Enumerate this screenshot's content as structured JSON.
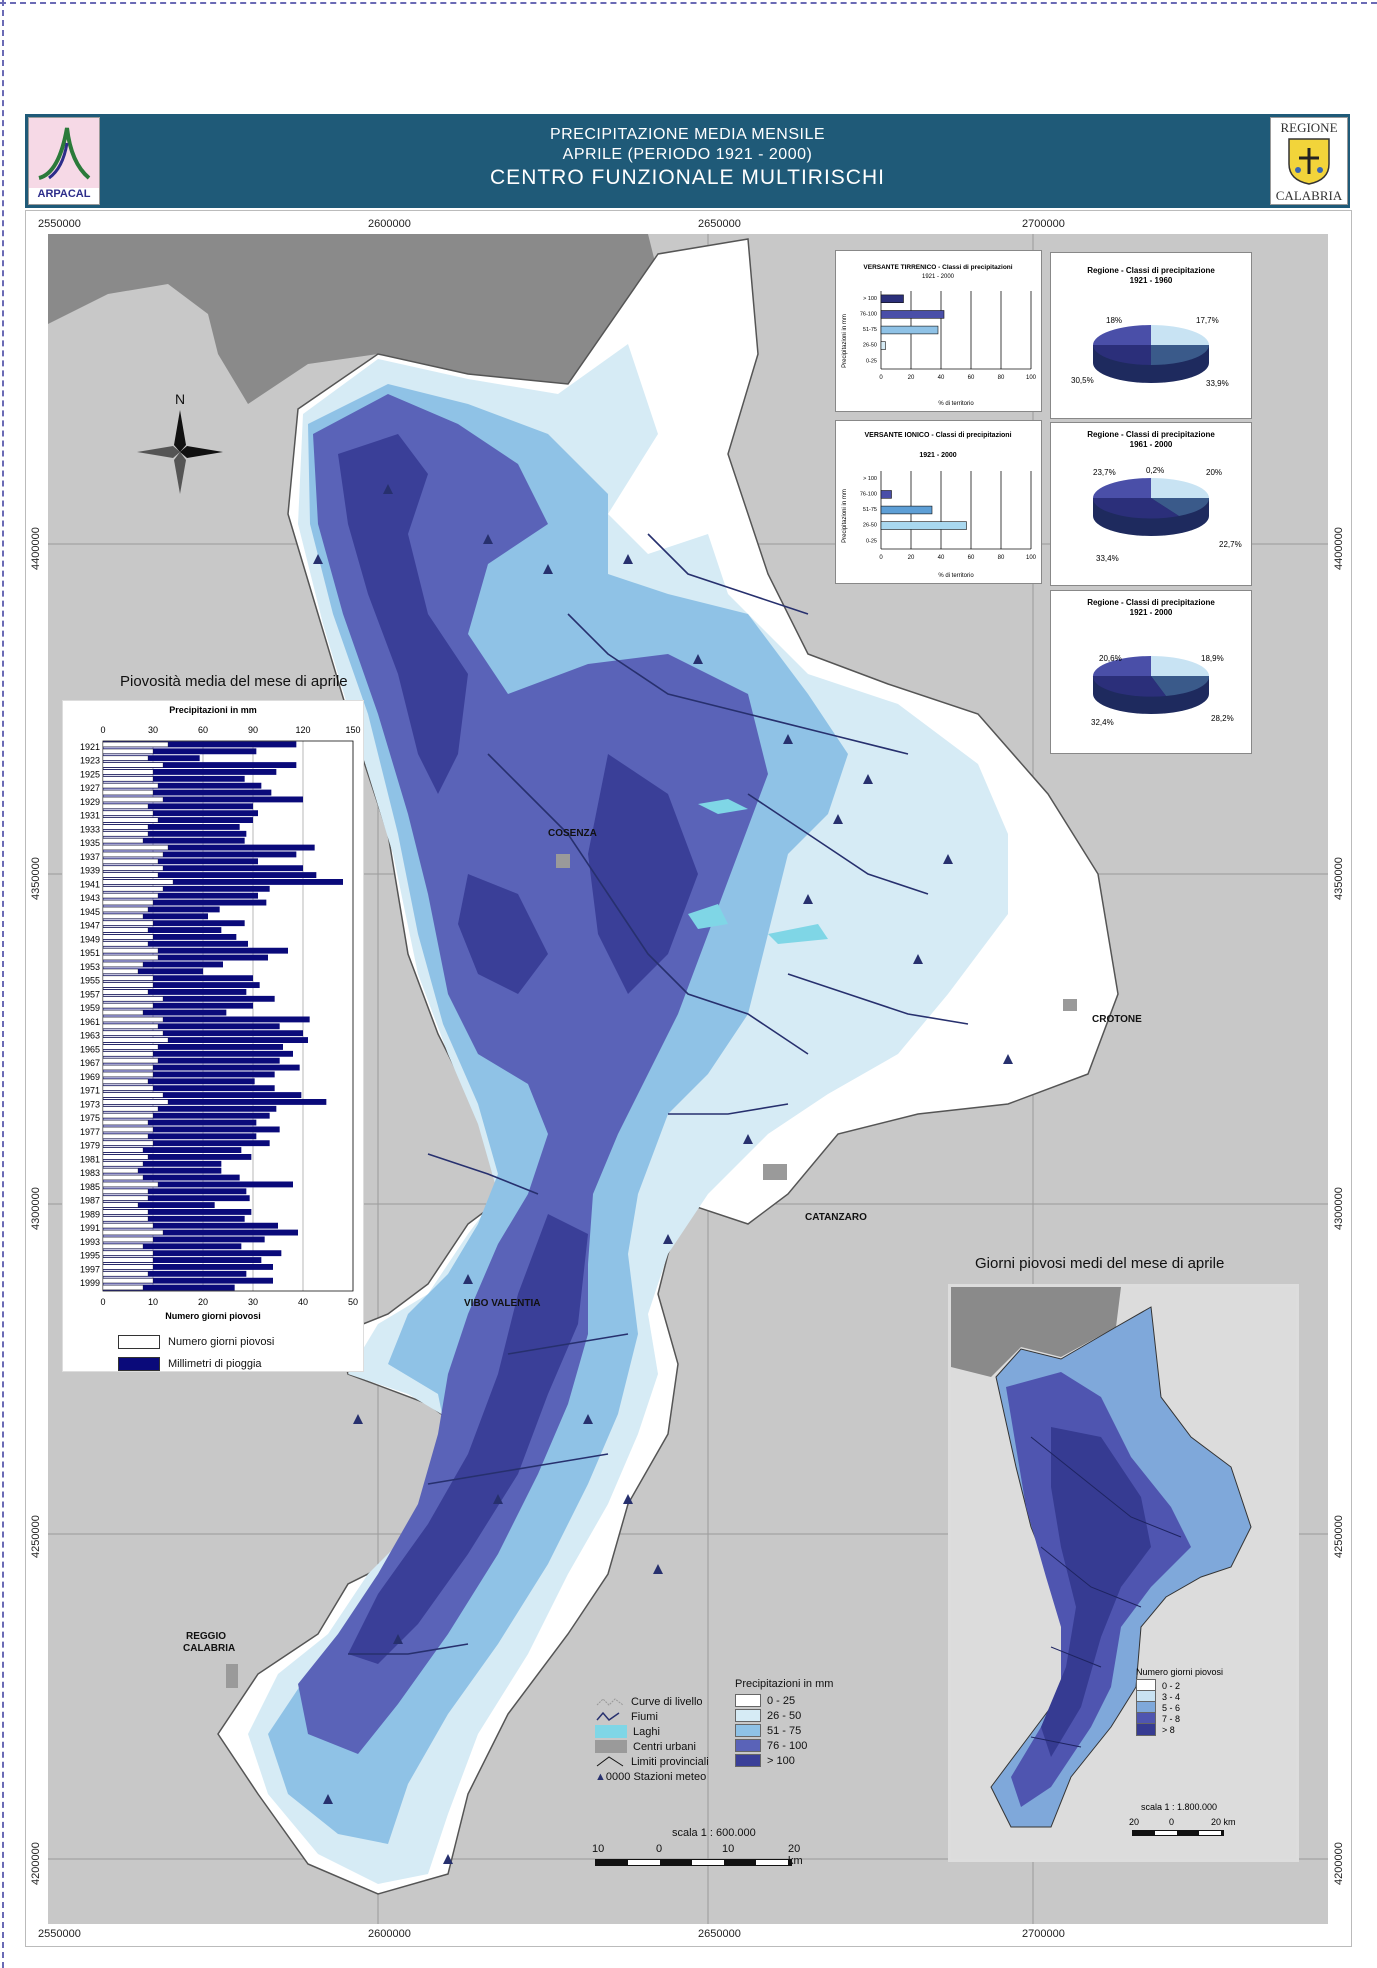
{
  "header": {
    "line1": "PRECIPITAZIONE MEDIA MENSILE",
    "line2": "APRILE (PERIODO 1921 - 2000)",
    "line3": "CENTRO FUNZIONALE MULTIRISCHI",
    "bg_color": "#1f5a78"
  },
  "logos": {
    "left_text": "ARPACAL",
    "right_top": "REGIONE",
    "right_bottom": "CALABRIA"
  },
  "coords": {
    "x_labels": [
      "2550000",
      "2600000",
      "2650000",
      "2700000"
    ],
    "y_labels": [
      "4400000",
      "4350000",
      "4300000",
      "4250000",
      "4200000"
    ]
  },
  "north_label": "N",
  "cities": {
    "cosenza": "COSENZA",
    "crotone": "CROTONE",
    "catanzaro": "CATANZARO",
    "vibo": "VIBO VALENTIA",
    "reggio1": "REGGIO",
    "reggio2": "CALABRIA"
  },
  "tirrenico_chart": {
    "title": "VERSANTE TIRRENICO - Classi di precipitazioni",
    "subtitle": "1921 - 2000",
    "ylabel": "Precipitazioni in mm",
    "xlabel": "% di territorio",
    "categories": [
      "> 100",
      "76-100",
      "51-75",
      "26-50",
      "0-25"
    ],
    "values": [
      15,
      42,
      38,
      3,
      0
    ],
    "xticks": [
      "0",
      "20",
      "40",
      "60",
      "80",
      "100"
    ]
  },
  "ionico_chart": {
    "title": "VERSANTE IONICO - Classi di precipitazioni",
    "subtitle": "1921 - 2000",
    "ylabel": "Precipitazioni in mm",
    "xlabel": "% di territorio",
    "categories": [
      "> 100",
      "76-100",
      "51-75",
      "26-50",
      "0-25"
    ],
    "values": [
      0,
      7,
      34,
      57,
      0
    ],
    "xticks": [
      "0",
      "20",
      "40",
      "60",
      "80",
      "100"
    ]
  },
  "pies": [
    {
      "title": "Regione - Classi di precipitazione",
      "period": "1921 - 1960",
      "labels": [
        "18%",
        "17,7%",
        "33,9%",
        "30,5%"
      ]
    },
    {
      "title": "Regione - Classi di precipitazione",
      "period": "1961 - 2000",
      "labels": [
        "0,2%",
        "20%",
        "22,7%",
        "33,4%",
        "23,7%"
      ]
    },
    {
      "title": "Regione - Classi di precipitazione",
      "period": "1921 - 2000",
      "labels": [
        "18,9%",
        "28,2%",
        "32,4%",
        "20,6%"
      ]
    }
  ],
  "histogram": {
    "title": "Piovosità media del mese di aprile",
    "top_axis_label": "Precipitazioni in mm",
    "top_ticks": [
      "0",
      "30",
      "60",
      "90",
      "120",
      "150"
    ],
    "bottom_axis_label": "Numero giorni piovosi",
    "bottom_ticks": [
      "0",
      "10",
      "20",
      "30",
      "40",
      "50"
    ],
    "year_labels": [
      "1921",
      "1923",
      "1925",
      "1927",
      "1929",
      "1931",
      "1933",
      "1935",
      "1937",
      "1939",
      "1941",
      "1943",
      "1945",
      "1947",
      "1949",
      "1951",
      "1953",
      "1955",
      "1957",
      "1959",
      "1961",
      "1963",
      "1965",
      "1967",
      "1969",
      "1971",
      "1973",
      "1975",
      "1977",
      "1979",
      "1981",
      "1983",
      "1985",
      "1987",
      "1989",
      "1991",
      "1993",
      "1995",
      "1997",
      "1999"
    ],
    "mm_values": [
      116,
      92,
      58,
      116,
      104,
      85,
      95,
      101,
      120,
      90,
      93,
      90,
      82,
      86,
      85,
      127,
      116,
      93,
      120,
      128,
      144,
      100,
      93,
      98,
      70,
      63,
      85,
      71,
      80,
      87,
      111,
      99,
      72,
      60,
      90,
      94,
      86,
      103,
      90,
      74,
      124,
      106,
      120,
      123,
      108,
      114,
      106,
      118,
      103,
      91,
      103,
      119,
      134,
      104,
      100,
      92,
      106,
      92,
      100,
      83,
      89,
      71,
      71,
      82,
      114,
      86,
      88,
      67,
      89,
      85,
      105,
      117,
      97,
      83,
      107,
      95,
      102,
      86,
      102,
      79
    ],
    "days_values": [
      13,
      10,
      9,
      12,
      10,
      10,
      11,
      10,
      12,
      9,
      10,
      11,
      9,
      9,
      8,
      13,
      12,
      11,
      12,
      11,
      14,
      12,
      11,
      10,
      9,
      8,
      10,
      9,
      10,
      9,
      11,
      11,
      8,
      7,
      10,
      10,
      9,
      12,
      10,
      8,
      12,
      11,
      12,
      13,
      11,
      10,
      11,
      10,
      10,
      9,
      10,
      12,
      13,
      11,
      10,
      9,
      10,
      9,
      10,
      8,
      9,
      8,
      7,
      8,
      11,
      9,
      9,
      7,
      9,
      9,
      10,
      12,
      10,
      8,
      10,
      10,
      10,
      9,
      10,
      8
    ],
    "legend_days": "Numero giorni piovosi",
    "legend_mm": "Millimetri di pioggia"
  },
  "map_legend": {
    "items": [
      "Curve di livello",
      "Fiumi",
      "Laghi",
      "Centri urbani",
      "Limiti provinciali",
      "Stazioni meteo"
    ],
    "station_prefix": "0000",
    "precip_title": "Precipitazioni in mm",
    "classes": [
      {
        "label": "0 - 25",
        "color": "#ffffff"
      },
      {
        "label": "26 - 50",
        "color": "#d6ebf5"
      },
      {
        "label": "51 - 75",
        "color": "#8fc2e6"
      },
      {
        "label": "76 - 100",
        "color": "#5a63b8"
      },
      {
        "label": "> 100",
        "color": "#3a3f98"
      }
    ]
  },
  "scale": {
    "label": "scala 1 : 600.000",
    "ticks": [
      "10",
      "0",
      "10",
      "20 km"
    ]
  },
  "inset": {
    "title": "Giorni piovosi medi del mese di aprile",
    "legend_title": "Numero giorni piovosi",
    "classes": [
      {
        "label": "0 - 2",
        "color": "#ffffff"
      },
      {
        "label": "3 - 4",
        "color": "#c9e2f2"
      },
      {
        "label": "5 - 6",
        "color": "#7fa8da"
      },
      {
        "label": "7 - 8",
        "color": "#4f55b0"
      },
      {
        "label": "> 8",
        "color": "#363b92"
      }
    ],
    "scale_label": "scala 1 : 1.800.000",
    "scale_ticks": [
      "20",
      "0",
      "20 km"
    ]
  },
  "colors": {
    "sea": "#c8c8c8",
    "land_out": "#8a8a8a",
    "river": "#27306e",
    "lake": "#7fd6e6"
  }
}
